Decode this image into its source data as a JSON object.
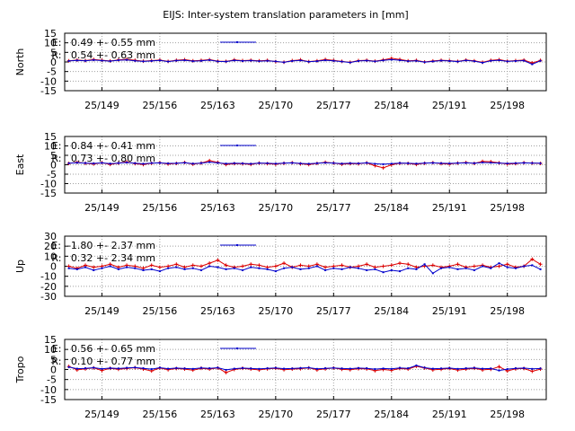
{
  "title": "EIJS: Inter-system translation parameters in [mm]",
  "colors": {
    "E": "#0000cc",
    "R": "#dd0000",
    "grid": "#a0a0a0",
    "frame": "#000000"
  },
  "chart_data": [
    {
      "type": "line",
      "ylabel": "North",
      "ylim": [
        -15,
        15
      ],
      "yticks": [
        "15",
        "10",
        "5",
        "0",
        "-5",
        "-10",
        "-15"
      ],
      "ytick_values": [
        15,
        10,
        5,
        0,
        -5,
        -10,
        -15
      ],
      "xlim": [
        144.5,
        202.7
      ],
      "xticks": [
        "25/149",
        "25/156",
        "25/163",
        "25/170",
        "25/177",
        "25/184",
        "25/191",
        "25/198"
      ],
      "xtick_values": [
        149,
        156,
        163,
        170,
        177,
        184,
        191,
        198
      ],
      "grid": true,
      "legend": [
        "E:   0.49 +- 0.55 mm",
        "R:   0.54 +- 0.63 mm"
      ],
      "x": [
        145,
        146,
        147,
        148,
        149,
        150,
        151,
        152,
        153,
        154,
        155,
        156,
        157,
        158,
        159,
        160,
        161,
        162,
        163,
        164,
        165,
        166,
        167,
        168,
        169,
        170,
        171,
        172,
        173,
        174,
        175,
        176,
        177,
        178,
        179,
        180,
        181,
        182,
        183,
        184,
        185,
        186,
        187,
        188,
        189,
        190,
        191,
        192,
        193,
        194,
        195,
        196,
        197,
        198,
        199,
        200,
        201,
        202
      ],
      "series": [
        {
          "name": "E",
          "values": [
            0.5,
            0.8,
            0.6,
            1.0,
            0.7,
            0.4,
            0.9,
            1.1,
            0.6,
            0.3,
            0.5,
            0.8,
            0.2,
            0.7,
            0.9,
            0.4,
            0.6,
            1.0,
            0.3,
            0.2,
            0.8,
            0.5,
            0.7,
            0.4,
            0.6,
            0.3,
            -0.2,
            0.5,
            0.8,
            0.1,
            0.4,
            0.9,
            0.6,
            0.2,
            -0.3,
            0.5,
            0.7,
            0.3,
            0.8,
            1.2,
            0.9,
            0.4,
            0.6,
            -0.1,
            0.3,
            0.7,
            0.5,
            0.2,
            0.8,
            0.4,
            -0.4,
            0.6,
            0.9,
            0.3,
            0.5,
            0.7,
            -1.2,
            0.6
          ]
        },
        {
          "name": "R",
          "values": [
            0.6,
            1.0,
            0.7,
            1.3,
            0.9,
            0.5,
            1.1,
            1.4,
            0.9,
            0.4,
            0.7,
            1.0,
            0.3,
            0.9,
            1.2,
            0.6,
            0.8,
            1.2,
            0.4,
            0.3,
            1.1,
            0.7,
            0.9,
            0.6,
            0.8,
            0.2,
            -0.1,
            0.7,
            1.1,
            0.2,
            0.6,
            1.3,
            0.8,
            0.3,
            -0.2,
            0.7,
            0.9,
            0.4,
            1.1,
            1.9,
            1.3,
            0.6,
            0.8,
            0.0,
            0.5,
            0.9,
            0.7,
            0.3,
            1.0,
            0.6,
            -0.2,
            0.8,
            1.2,
            0.4,
            0.7,
            1.0,
            -0.5,
            0.8
          ]
        }
      ]
    },
    {
      "type": "line",
      "ylabel": "East",
      "ylim": [
        -15,
        15
      ],
      "yticks": [
        "15",
        "10",
        "5",
        "0",
        "-5",
        "-10",
        "-15"
      ],
      "ytick_values": [
        15,
        10,
        5,
        0,
        -5,
        -10,
        -15
      ],
      "xlim": [
        144.5,
        202.7
      ],
      "xticks": [
        "25/149",
        "25/156",
        "25/163",
        "25/170",
        "25/177",
        "25/184",
        "25/191",
        "25/198"
      ],
      "xtick_values": [
        149,
        156,
        163,
        170,
        177,
        184,
        191,
        198
      ],
      "grid": true,
      "legend": [
        "E:   0.84 +- 0.41 mm",
        "R:   0.73 +- 0.80 mm"
      ],
      "x": [
        145,
        146,
        147,
        148,
        149,
        150,
        151,
        152,
        153,
        154,
        155,
        156,
        157,
        158,
        159,
        160,
        161,
        162,
        163,
        164,
        165,
        166,
        167,
        168,
        169,
        170,
        171,
        172,
        173,
        174,
        175,
        176,
        177,
        178,
        179,
        180,
        181,
        182,
        183,
        184,
        185,
        186,
        187,
        188,
        189,
        190,
        191,
        192,
        193,
        194,
        195,
        196,
        197,
        198,
        199,
        200,
        201,
        202
      ],
      "series": [
        {
          "name": "E",
          "values": [
            0.8,
            1.1,
            0.9,
            0.7,
            1.0,
            0.6,
            0.9,
            1.2,
            0.8,
            0.5,
            0.9,
            1.0,
            0.7,
            0.8,
            1.1,
            0.6,
            0.9,
            1.4,
            1.0,
            0.6,
            0.8,
            0.7,
            0.5,
            0.9,
            0.8,
            0.6,
            0.9,
            1.0,
            0.7,
            0.5,
            0.8,
            1.1,
            0.9,
            0.6,
            0.8,
            0.7,
            1.0,
            0.5,
            0.3,
            0.6,
            0.9,
            0.8,
            0.6,
            0.9,
            1.0,
            0.8,
            0.7,
            0.9,
            1.0,
            0.8,
            1.2,
            1.1,
            0.9,
            0.7,
            0.8,
            1.0,
            0.9,
            0.8
          ]
        },
        {
          "name": "R",
          "values": [
            0.7,
            1.3,
            0.8,
            0.4,
            1.1,
            0.2,
            0.9,
            1.5,
            0.6,
            0.1,
            0.8,
            1.1,
            0.4,
            0.7,
            1.2,
            0.3,
            0.9,
            2.2,
            1.3,
            0.1,
            0.6,
            0.5,
            0.2,
            0.9,
            0.6,
            0.3,
            0.8,
            1.1,
            0.5,
            0.1,
            0.7,
            1.3,
            0.9,
            0.3,
            0.6,
            0.5,
            1.0,
            -0.5,
            -1.6,
            0.0,
            0.8,
            0.7,
            0.2,
            0.8,
            1.1,
            0.6,
            0.4,
            0.9,
            1.2,
            0.7,
            1.8,
            1.6,
            1.0,
            0.4,
            0.6,
            1.1,
            0.9,
            0.7
          ]
        }
      ]
    },
    {
      "type": "line",
      "ylabel": "Up",
      "ylim": [
        -30,
        30
      ],
      "yticks": [
        "30",
        "20",
        "10",
        "0",
        "-10",
        "-20",
        "-30"
      ],
      "ytick_values": [
        30,
        20,
        10,
        0,
        -10,
        -20,
        -30
      ],
      "xlim": [
        144.5,
        202.7
      ],
      "xticks": [
        "25/149",
        "25/156",
        "25/163",
        "25/170",
        "25/177",
        "25/184",
        "25/191",
        "25/198"
      ],
      "xtick_values": [
        149,
        156,
        163,
        170,
        177,
        184,
        191,
        198
      ],
      "grid": true,
      "legend": [
        "E:  -1.80 +- 2.37 mm",
        "R:   0.32 +- 2.34 mm"
      ],
      "x": [
        145,
        146,
        147,
        148,
        149,
        150,
        151,
        152,
        153,
        154,
        155,
        156,
        157,
        158,
        159,
        160,
        161,
        162,
        163,
        164,
        165,
        166,
        167,
        168,
        169,
        170,
        171,
        172,
        173,
        174,
        175,
        176,
        177,
        178,
        179,
        180,
        181,
        182,
        183,
        184,
        185,
        186,
        187,
        188,
        189,
        190,
        191,
        192,
        193,
        194,
        195,
        196,
        197,
        198,
        199,
        200,
        201,
        202
      ],
      "series": [
        {
          "name": "E",
          "values": [
            -2,
            -3,
            -1,
            -4,
            -2,
            0,
            -3,
            -1,
            -2,
            -4,
            -3,
            -5,
            -2,
            -1,
            -3,
            -2,
            -4,
            0,
            -1,
            -3,
            -2,
            -4,
            -1,
            -2,
            -3,
            -5,
            -2,
            -1,
            -3,
            -2,
            0,
            -4,
            -2,
            -3,
            -1,
            -2,
            -4,
            -3,
            -6,
            -4,
            -5,
            -2,
            -3,
            2,
            -7,
            -2,
            -1,
            -3,
            -2,
            -4,
            0,
            -2,
            3,
            -1,
            -2,
            0,
            1,
            -3
          ]
        },
        {
          "name": "R",
          "values": [
            0,
            -2,
            1,
            -1,
            0,
            2,
            -1,
            1,
            0,
            -2,
            1,
            -1,
            0,
            2,
            -1,
            1,
            0,
            3,
            6,
            1,
            -1,
            0,
            2,
            1,
            -1,
            0,
            3,
            -1,
            1,
            0,
            2,
            -1,
            0,
            1,
            -1,
            0,
            2,
            -1,
            0,
            1,
            3,
            2,
            -1,
            0,
            1,
            -1,
            0,
            2,
            -1,
            0,
            1,
            -1,
            0,
            2,
            -1,
            0,
            7,
            2
          ]
        }
      ]
    },
    {
      "type": "line",
      "ylabel": "Tropo",
      "ylim": [
        -15,
        15
      ],
      "yticks": [
        "15",
        "10",
        "5",
        "0",
        "-5",
        "-10",
        "-15"
      ],
      "ytick_values": [
        15,
        10,
        5,
        0,
        -5,
        -10,
        -15
      ],
      "xlim": [
        144.5,
        202.7
      ],
      "xticks": [
        "25/149",
        "25/156",
        "25/163",
        "25/170",
        "25/177",
        "25/184",
        "25/191",
        "25/198"
      ],
      "xtick_values": [
        149,
        156,
        163,
        170,
        177,
        184,
        191,
        198
      ],
      "grid": true,
      "legend": [
        "E:   0.56 +- 0.65 mm",
        "R:   0.10 +- 0.77 mm"
      ],
      "x": [
        145,
        146,
        147,
        148,
        149,
        150,
        151,
        152,
        153,
        154,
        155,
        156,
        157,
        158,
        159,
        160,
        161,
        162,
        163,
        164,
        165,
        166,
        167,
        168,
        169,
        170,
        171,
        172,
        173,
        174,
        175,
        176,
        177,
        178,
        179,
        180,
        181,
        182,
        183,
        184,
        185,
        186,
        187,
        188,
        189,
        190,
        191,
        192,
        193,
        194,
        195,
        196,
        197,
        198,
        199,
        200,
        201,
        202
      ],
      "series": [
        {
          "name": "E",
          "values": [
            1.2,
            0.4,
            0.6,
            0.9,
            0.3,
            0.7,
            0.5,
            0.8,
            1.0,
            0.6,
            0.2,
            0.9,
            0.4,
            0.7,
            0.5,
            0.3,
            0.8,
            0.6,
            0.9,
            -0.2,
            0.4,
            0.7,
            0.5,
            0.3,
            0.6,
            0.8,
            0.4,
            0.5,
            0.7,
            0.9,
            0.3,
            0.6,
            0.8,
            0.5,
            0.4,
            0.7,
            0.6,
            0.2,
            0.5,
            0.3,
            0.8,
            0.6,
            2.0,
            0.9,
            0.4,
            0.5,
            0.7,
            0.3,
            0.6,
            0.8,
            0.4,
            0.5,
            -0.5,
            0.2,
            0.6,
            0.7,
            0.3,
            0.5
          ]
        },
        {
          "name": "R",
          "values": [
            1.5,
            -0.2,
            0.3,
            0.8,
            -0.5,
            0.6,
            0.1,
            0.5,
            0.9,
            0.2,
            -0.7,
            0.7,
            -0.1,
            0.5,
            0.2,
            -0.3,
            0.6,
            0.2,
            0.8,
            -1.5,
            0.0,
            0.6,
            0.2,
            -0.2,
            0.3,
            0.6,
            -0.1,
            0.2,
            0.4,
            0.8,
            -0.2,
            0.3,
            0.7,
            0.1,
            -0.1,
            0.4,
            0.3,
            -0.6,
            0.0,
            -0.4,
            0.5,
            0.2,
            1.6,
            0.7,
            -0.2,
            0.1,
            0.5,
            -0.3,
            0.2,
            0.6,
            -0.2,
            0.1,
            1.4,
            -0.7,
            0.3,
            0.5,
            -0.9,
            0.2
          ]
        }
      ]
    }
  ]
}
